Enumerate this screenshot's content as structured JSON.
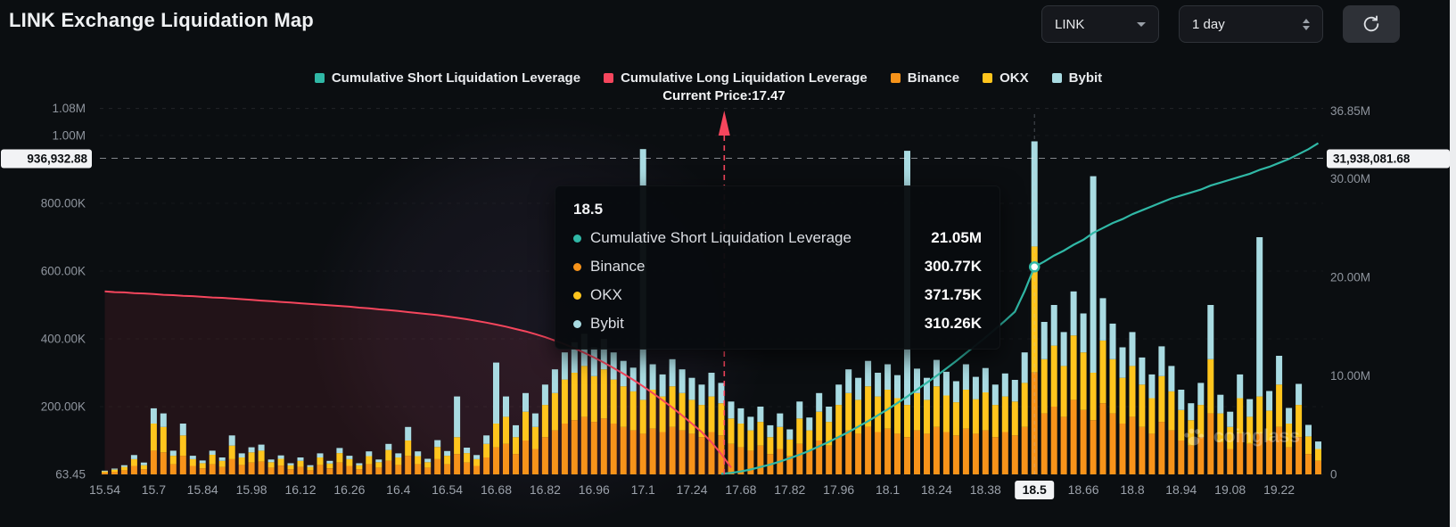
{
  "header": {
    "title": "LINK Exchange Liquidation Map",
    "symbol_select": {
      "value": "LINK"
    },
    "interval_select": {
      "value": "1 day"
    }
  },
  "legend": [
    {
      "label": "Cumulative Short Liquidation Leverage",
      "color": "#30B8A6"
    },
    {
      "label": "Cumulative Long Liquidation Leverage",
      "color": "#F6465D"
    },
    {
      "label": "Binance",
      "color": "#F7931A"
    },
    {
      "label": "OKX",
      "color": "#FFC51D"
    },
    {
      "label": "Bybit",
      "color": "#A9DBE2"
    }
  ],
  "tooltip": {
    "title": "18.5",
    "rows": [
      {
        "label": "Cumulative Short Liquidation Leverage",
        "value": "21.05M",
        "color": "#30B8A6"
      },
      {
        "label": "Binance",
        "value": "300.77K",
        "color": "#F7931A"
      },
      {
        "label": "OKX",
        "value": "371.75K",
        "color": "#FFC51D"
      },
      {
        "label": "Bybit",
        "value": "310.26K",
        "color": "#A9DBE2"
      }
    ]
  },
  "watermark": {
    "label": "coinglass"
  },
  "chart_data": {
    "type": "bar",
    "subtype": "stacked bars with two cumulative lines",
    "x_tick_labels": [
      "15.54",
      "15.7",
      "15.84",
      "15.98",
      "16.12",
      "16.26",
      "16.4",
      "16.54",
      "16.68",
      "16.82",
      "16.96",
      "17.1",
      "17.24",
      "17.68",
      "17.82",
      "17.96",
      "18.1",
      "18.24",
      "18.38",
      "18.5",
      "18.66",
      "18.8",
      "18.94",
      "19.08",
      "19.22"
    ],
    "highlighted_x_tick": "18.5",
    "current_price": {
      "label": "Current Price:17.47",
      "value": 17.47,
      "x_index": 63.3,
      "color": "#F6465D"
    },
    "hover": {
      "x_label": "18.5",
      "bar_index": 95,
      "short_value_m": 21.05
    },
    "y_left": {
      "unit": "K",
      "ticks": [
        {
          "label": "1.08M",
          "value": 1080
        },
        {
          "label": "1.00M",
          "value": 1000
        },
        {
          "label": "800.00K",
          "value": 800
        },
        {
          "label": "600.00K",
          "value": 600
        },
        {
          "label": "400.00K",
          "value": 400
        },
        {
          "label": "200.00K",
          "value": 200
        },
        {
          "label": "63.45",
          "value": 0.06345
        }
      ],
      "highlight": {
        "label": "936,932.88",
        "value": 936.93288
      }
    },
    "y_right": {
      "unit": "M",
      "ticks": [
        {
          "label": "36.85M",
          "value": 36.85
        },
        {
          "label": "30.00M",
          "value": 30
        },
        {
          "label": "20.00M",
          "value": 20
        },
        {
          "label": "10.00M",
          "value": 10
        },
        {
          "label": "0",
          "value": 0
        }
      ],
      "highlight": {
        "label": "31,938,081.68",
        "value": 31.93808168
      }
    },
    "bar_series": [
      {
        "name": "Binance",
        "color": "#F7931A",
        "unit": "K",
        "values": [
          5,
          8,
          12,
          25,
          15,
          70,
          65,
          30,
          55,
          25,
          18,
          30,
          22,
          45,
          28,
          35,
          38,
          20,
          26,
          15,
          22,
          12,
          28,
          18,
          35,
          25,
          15,
          30,
          20,
          40,
          28,
          55,
          30,
          20,
          45,
          30,
          60,
          35,
          25,
          50,
          80,
          90,
          60,
          100,
          75,
          110,
          130,
          150,
          160,
          170,
          155,
          165,
          150,
          140,
          130,
          120,
          135,
          125,
          140,
          130,
          120,
          110,
          125,
          115,
          90,
          80,
          70,
          85,
          60,
          75,
          55,
          90,
          70,
          100,
          85,
          110,
          130,
          120,
          140,
          125,
          135,
          120,
          110,
          130,
          120,
          140,
          125,
          115,
          135,
          120,
          130,
          110,
          125,
          115,
          140,
          300.77,
          180,
          200,
          170,
          220,
          190,
          160,
          210,
          180,
          150,
          170,
          140,
          120,
          155,
          130,
          100,
          85,
          110,
          180,
          95,
          75,
          120,
          90,
          120,
          100,
          140,
          80,
          110,
          60,
          40
        ]
      },
      {
        "name": "OKX",
        "color": "#FFC51D",
        "unit": "K",
        "values": [
          4,
          6,
          10,
          20,
          12,
          80,
          75,
          25,
          60,
          20,
          15,
          28,
          18,
          40,
          22,
          30,
          32,
          16,
          20,
          12,
          18,
          10,
          22,
          14,
          28,
          20,
          12,
          24,
          16,
          32,
          22,
          45,
          24,
          16,
          36,
          25,
          50,
          28,
          20,
          40,
          70,
          80,
          50,
          85,
          65,
          95,
          110,
          130,
          140,
          150,
          135,
          145,
          130,
          120,
          115,
          100,
          115,
          105,
          120,
          110,
          100,
          95,
          105,
          95,
          75,
          70,
          60,
          70,
          50,
          65,
          48,
          75,
          60,
          85,
          70,
          95,
          110,
          100,
          120,
          105,
          115,
          105,
          95,
          110,
          100,
          120,
          108,
          98,
          115,
          102,
          112,
          95,
          105,
          100,
          130,
          371.75,
          160,
          180,
          150,
          190,
          170,
          140,
          185,
          160,
          135,
          150,
          125,
          105,
          135,
          115,
          90,
          75,
          95,
          160,
          85,
          65,
          105,
          80,
          110,
          88,
          125,
          70,
          95,
          52,
          35
        ]
      },
      {
        "name": "Bybit",
        "color": "#A9DBE2",
        "unit": "K",
        "values": [
          2,
          3,
          5,
          12,
          8,
          45,
          40,
          15,
          35,
          10,
          8,
          12,
          10,
          30,
          12,
          15,
          18,
          8,
          10,
          6,
          10,
          5,
          12,
          8,
          15,
          10,
          6,
          14,
          8,
          18,
          12,
          40,
          14,
          10,
          20,
          14,
          120,
          16,
          12,
          25,
          180,
          60,
          35,
          55,
          40,
          60,
          70,
          80,
          90,
          95,
          85,
          90,
          80,
          75,
          70,
          740,
          75,
          65,
          80,
          70,
          65,
          60,
          70,
          60,
          50,
          45,
          40,
          45,
          35,
          40,
          30,
          50,
          38,
          55,
          45,
          60,
          70,
          65,
          75,
          70,
          75,
          68,
          750,
          72,
          65,
          78,
          70,
          62,
          75,
          66,
          72,
          60,
          68,
          64,
          90,
          310.26,
          110,
          120,
          100,
          130,
          115,
          580,
          125,
          105,
          90,
          100,
          80,
          70,
          88,
          75,
          60,
          50,
          65,
          160,
          55,
          45,
          70,
          52,
          470,
          58,
          85,
          46,
          62,
          34,
          22
        ]
      }
    ],
    "line_series": [
      {
        "name": "Cumulative Long Liquidation Leverage",
        "color": "#F6465D",
        "axis": "left",
        "unit": "K",
        "start_index": 0,
        "values": [
          540,
          538,
          537,
          535,
          534,
          532,
          530,
          529,
          527,
          526,
          524,
          522,
          521,
          519,
          517,
          515,
          513,
          511,
          509,
          507,
          505,
          503,
          501,
          499,
          497,
          495,
          492,
          490,
          487,
          485,
          482,
          479,
          476,
          473,
          470,
          466,
          462,
          458,
          453,
          448,
          442,
          436,
          429,
          422,
          414,
          405,
          395,
          384,
          372,
          359,
          345,
          330,
          314,
          297,
          279,
          260,
          240,
          219,
          197,
          174,
          150,
          125,
          95,
          60,
          20
        ]
      },
      {
        "name": "Cumulative Short Liquidation Leverage",
        "color": "#30B8A6",
        "axis": "right",
        "unit": "M",
        "start_index": 63,
        "values": [
          0.05,
          0.15,
          0.3,
          0.5,
          0.75,
          1.0,
          1.3,
          1.65,
          2.0,
          2.4,
          2.85,
          3.3,
          3.8,
          4.3,
          4.85,
          5.4,
          6.0,
          6.6,
          7.25,
          7.9,
          8.6,
          9.3,
          10.0,
          10.75,
          11.5,
          12.3,
          13.1,
          13.9,
          14.75,
          15.6,
          16.5,
          18.6,
          21.05,
          21.6,
          22.2,
          22.7,
          23.3,
          23.8,
          24.5,
          25.0,
          25.5,
          25.9,
          26.4,
          26.8,
          27.2,
          27.6,
          28.0,
          28.3,
          28.6,
          28.9,
          29.3,
          29.6,
          29.9,
          30.2,
          30.5,
          30.9,
          31.2,
          31.6,
          32.0,
          32.5,
          33.0,
          33.6
        ]
      }
    ]
  }
}
